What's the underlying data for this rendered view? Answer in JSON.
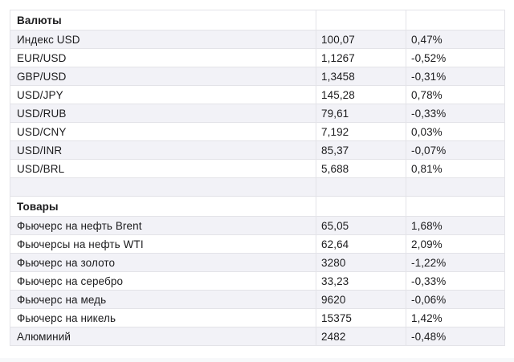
{
  "colors": {
    "stripe_row_bg": "#f2f2f7",
    "border": "#e3e3e8",
    "text": "#1c1c1e",
    "page_bg": "#ffffff"
  },
  "sections": [
    {
      "header": "Валюты",
      "rows": [
        {
          "name": "Индекс USD",
          "value": "100,07",
          "change": "0,47%"
        },
        {
          "name": "EUR/USD",
          "value": "1,1267",
          "change": "-0,52%"
        },
        {
          "name": "GBP/USD",
          "value": "1,3458",
          "change": "-0,31%"
        },
        {
          "name": "USD/JPY",
          "value": "145,28",
          "change": "0,78%"
        },
        {
          "name": "USD/RUB",
          "value": "79,61",
          "change": "-0,33%"
        },
        {
          "name": "USD/CNY",
          "value": "7,192",
          "change": "0,03%"
        },
        {
          "name": "USD/INR",
          "value": "85,37",
          "change": "-0,07%"
        },
        {
          "name": "USD/BRL",
          "value": "5,688",
          "change": "0,81%"
        }
      ]
    },
    {
      "header": "Товары",
      "rows": [
        {
          "name": "Фьючерс на нефть Brent",
          "value": "65,05",
          "change": "1,68%"
        },
        {
          "name": "Фьючерсы на нефть WTI",
          "value": "62,64",
          "change": "2,09%"
        },
        {
          "name": "Фьючерс на золото",
          "value": "3280",
          "change": "-1,22%"
        },
        {
          "name": "Фьючерс на серебро",
          "value": "33,23",
          "change": "-0,33%"
        },
        {
          "name": "Фьючерс на медь",
          "value": "9620",
          "change": "-0,06%"
        },
        {
          "name": "Фьючерс на никель",
          "value": "15375",
          "change": "1,42%"
        },
        {
          "name": "Алюминий",
          "value": "2482",
          "change": "-0,48%"
        }
      ]
    }
  ]
}
